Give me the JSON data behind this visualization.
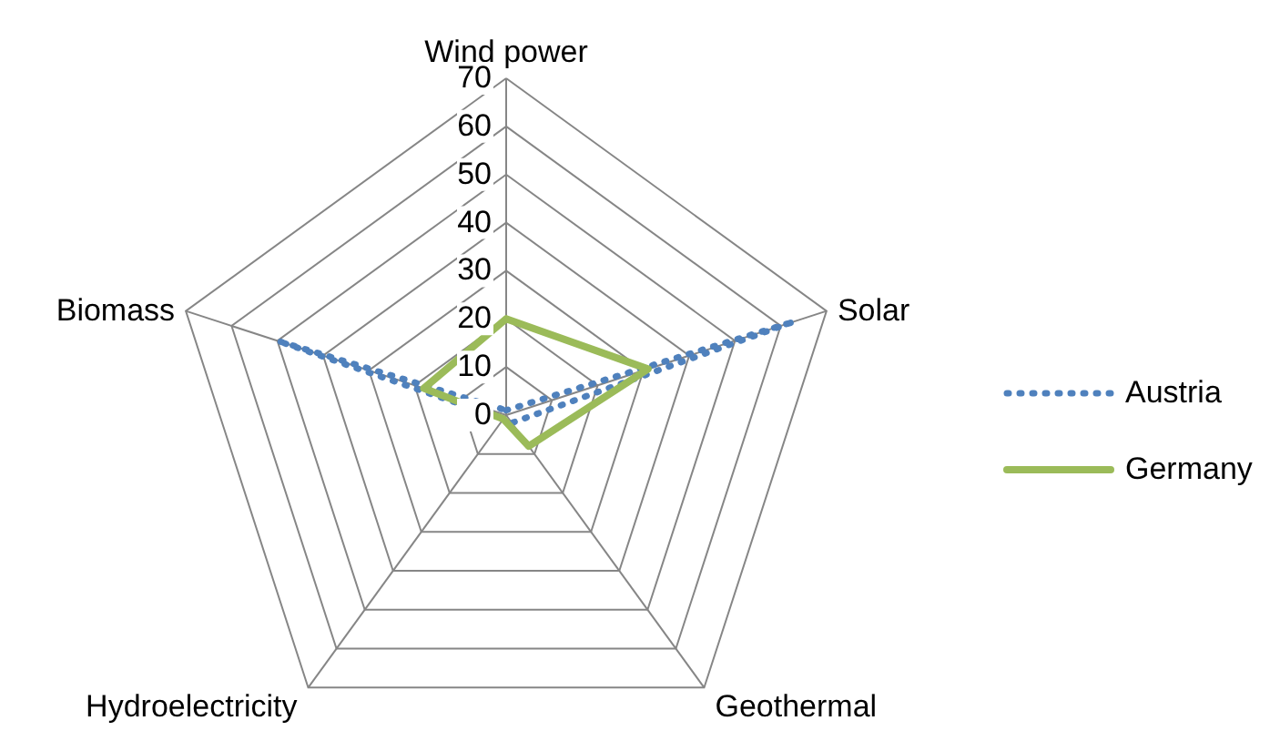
{
  "chart_data": {
    "type": "radar",
    "categories": [
      "Wind power",
      "Solar",
      "Geothermal",
      "Hydroelectricity",
      "Biomass"
    ],
    "series": [
      {
        "name": "Austria",
        "color": "#4f81bd",
        "line_style": "dotted",
        "values": [
          1,
          63,
          2,
          1,
          50
        ]
      },
      {
        "name": "Germany",
        "color": "#9bbb59",
        "line_style": "solid",
        "values": [
          20,
          31,
          8,
          1,
          18
        ]
      }
    ],
    "ylim": [
      0,
      70
    ],
    "yticks": [
      0,
      10,
      20,
      30,
      40,
      50,
      60,
      70
    ],
    "legend": "right",
    "grid": true
  }
}
